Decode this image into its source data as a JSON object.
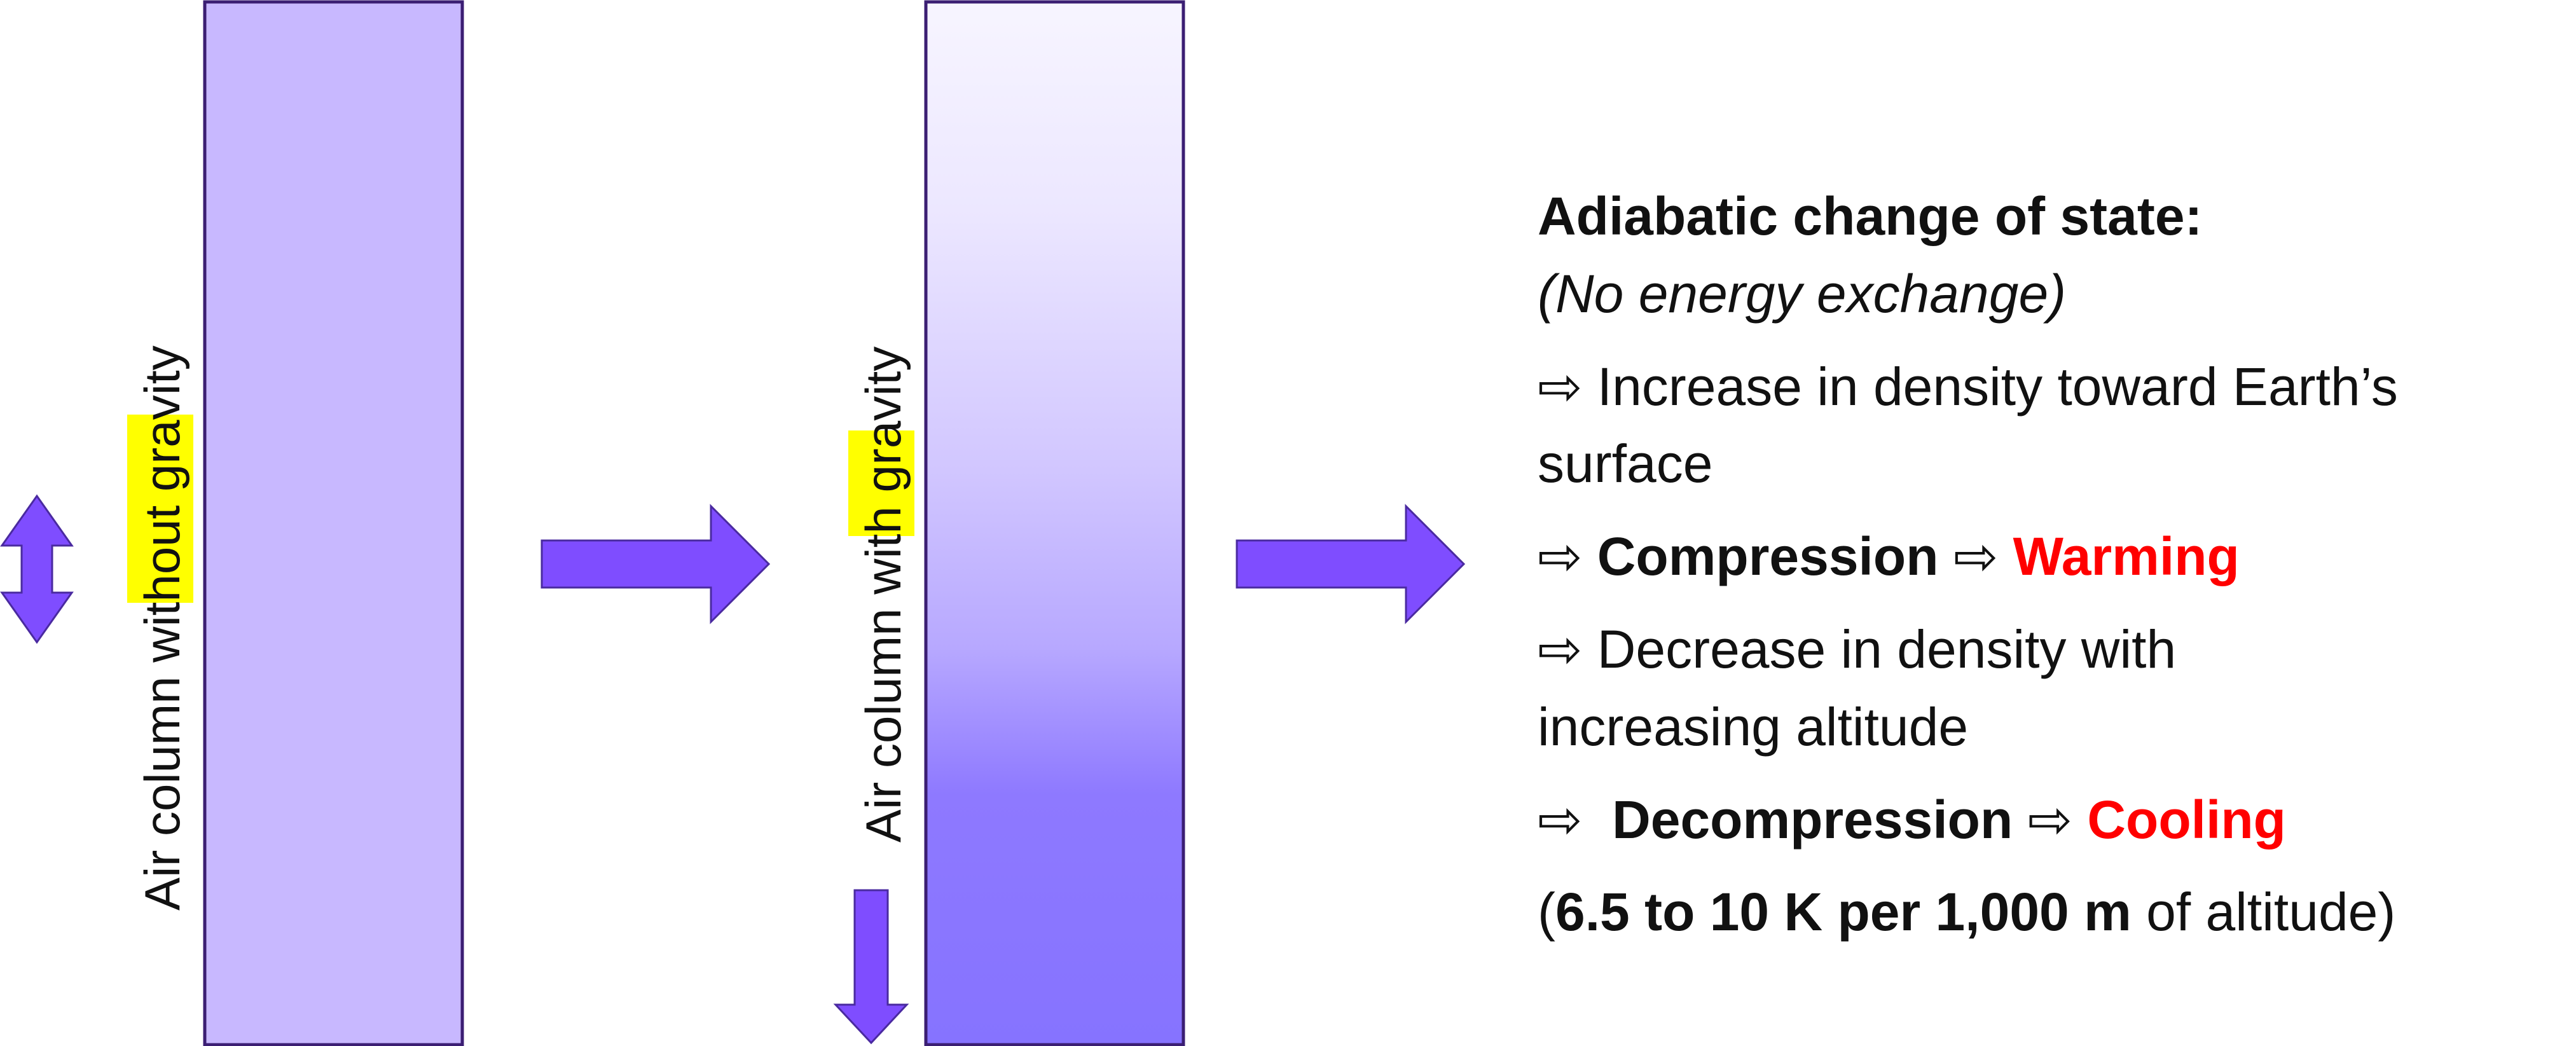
{
  "colors": {
    "column_fill": "#c8b8ff",
    "column_border": "#3b1e73",
    "column_gradient_top": "#f7f5ff",
    "column_gradient_bottom": "#8673ff",
    "arrow_fill": "#7f4dff",
    "highlight": "#ffff00",
    "emphasis": "#ff0000"
  },
  "column_without": {
    "label_prefix": "Air column ",
    "label_highlight": "without",
    "label_suffix": " gravity"
  },
  "column_with": {
    "label_prefix": "Air column ",
    "label_highlight": "with",
    "label_suffix": " gravity"
  },
  "text": {
    "title": "Adiabatic change of state:",
    "subtitle": "(No energy exchange)",
    "arrow_glyph": "⇨",
    "increase_line_1": "Increase in density toward Earth’s",
    "increase_line_2": "surface",
    "compression": "Compression",
    "warming": "Warming",
    "decrease_line_1": "Decrease in density with",
    "decrease_line_2": "increasing altitude",
    "decompression": "Decompression",
    "cooling": "Cooling",
    "rate_open": "(",
    "rate_value": "6.5 to 10 K per 1,000 m",
    "rate_suffix": " of altitude)"
  }
}
